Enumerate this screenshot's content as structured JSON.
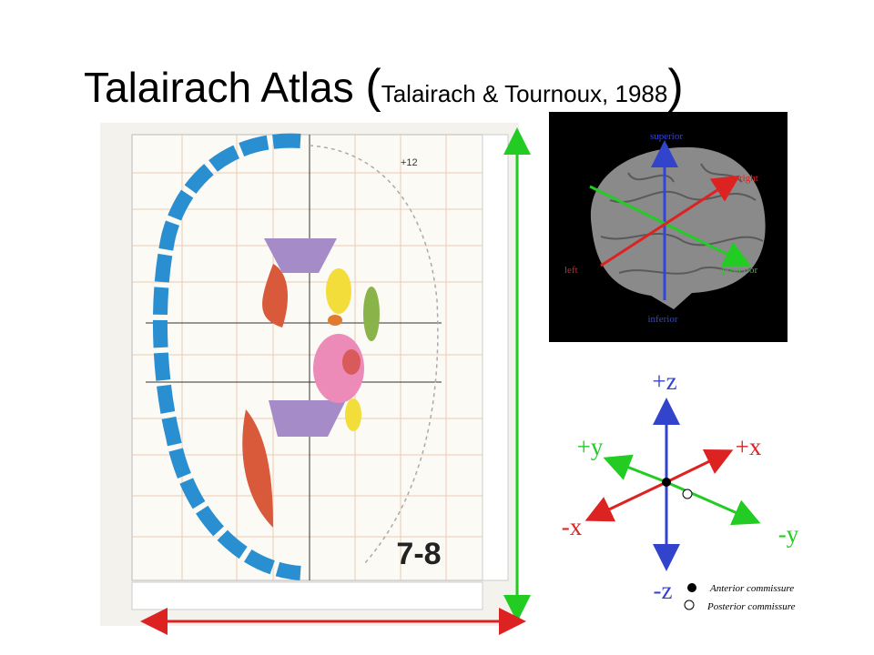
{
  "title": {
    "main": "Talairach Atlas ",
    "paren_open": "(",
    "citation": "Talairach & Tournoux, 1988",
    "paren_close": ")"
  },
  "atlas": {
    "plate": "7-8",
    "level": "+12"
  },
  "brain_view": {
    "superior": "superior",
    "right": "right",
    "left": "left",
    "posterior": "posterior",
    "inferior": "inferior"
  },
  "axes": {
    "pz": "+z",
    "py": "+y",
    "px": "+x",
    "nx": "-x",
    "ny": "-y",
    "nz": "-z"
  },
  "legend": [
    {
      "label": "Anterior commissure"
    },
    {
      "label": "Posterior commissure"
    }
  ]
}
